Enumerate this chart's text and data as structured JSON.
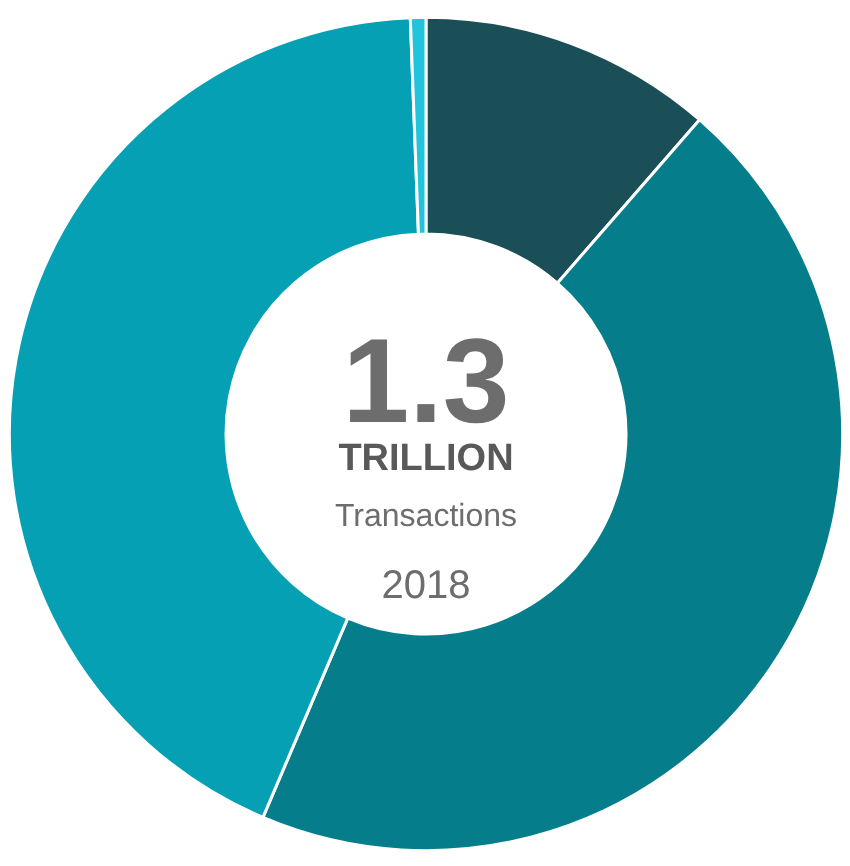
{
  "chart_data": {
    "type": "donut",
    "categories": [
      null,
      null,
      null,
      null
    ],
    "values": [
      11.4,
      45,
      43,
      0.6
    ],
    "colors": [
      "#1a4f58",
      "#067d8a",
      "#06a0b4",
      "#22c4dc"
    ],
    "annotations": [
      "1.3",
      "TRILLION",
      "Transactions",
      "2018"
    ]
  }
}
